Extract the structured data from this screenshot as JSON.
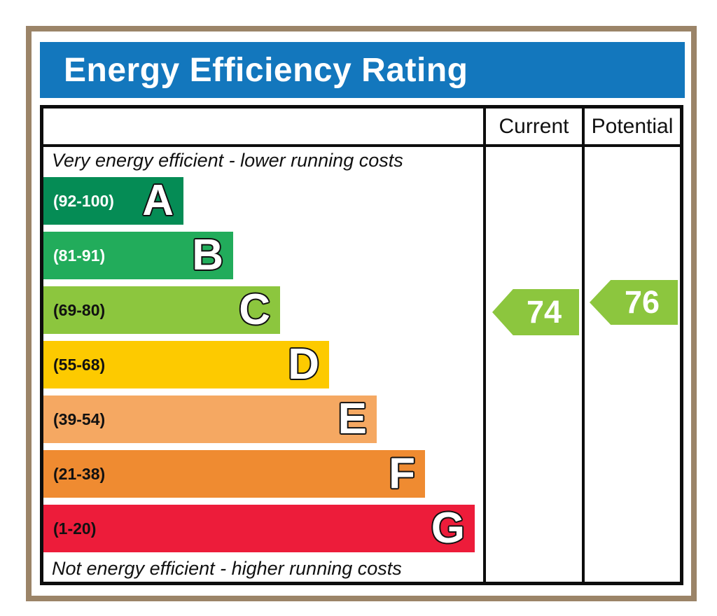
{
  "title": "Energy Efficiency Rating",
  "table": {
    "current_header": "Current",
    "potential_header": "Potential"
  },
  "captions": {
    "top": "Very energy efficient - lower running costs",
    "bottom": "Not energy efficient - higher running costs"
  },
  "bands": [
    {
      "letter": "A",
      "range": "(92-100)",
      "color": "#058c55",
      "text_color": "#ffffff"
    },
    {
      "letter": "B",
      "range": "(81-91)",
      "color": "#22ac5b",
      "text_color": "#ffffff"
    },
    {
      "letter": "C",
      "range": "(69-80)",
      "color": "#8cc63e",
      "text_color": "#111111"
    },
    {
      "letter": "D",
      "range": "(55-68)",
      "color": "#fdca00",
      "text_color": "#111111"
    },
    {
      "letter": "E",
      "range": "(39-54)",
      "color": "#f5a862",
      "text_color": "#111111"
    },
    {
      "letter": "F",
      "range": "(21-38)",
      "color": "#ef8b31",
      "text_color": "#111111"
    },
    {
      "letter": "G",
      "range": "(1-20)",
      "color": "#ed1c3a",
      "text_color": "#111111"
    }
  ],
  "ratings": {
    "current": {
      "value": "74",
      "color": "#8cc63e"
    },
    "potential": {
      "value": "76",
      "color": "#8cc63e"
    }
  },
  "colors": {
    "header_bg": "#1377bd",
    "frame": "#9b8468",
    "table_border": "#0d0d0d",
    "arrow_green": "#8cc63e"
  },
  "chart_data": {
    "type": "bar",
    "title": "Energy Efficiency Rating",
    "categories": [
      "A",
      "B",
      "C",
      "D",
      "E",
      "F",
      "G"
    ],
    "range_labels": [
      "(92-100)",
      "(81-91)",
      "(69-80)",
      "(55-68)",
      "(39-54)",
      "(21-38)",
      "(1-20)"
    ],
    "band_ranges": [
      [
        92,
        100
      ],
      [
        81,
        91
      ],
      [
        69,
        80
      ],
      [
        55,
        68
      ],
      [
        39,
        54
      ],
      [
        21,
        38
      ],
      [
        1,
        20
      ]
    ],
    "band_colors": [
      "#058c55",
      "#22ac5b",
      "#8cc63e",
      "#fdca00",
      "#f5a862",
      "#ef8b31",
      "#ed1c3a"
    ],
    "bar_relative_widths": [
      200,
      271,
      338,
      408,
      476,
      545,
      616
    ],
    "current": 74,
    "potential": 76,
    "current_band": "C",
    "potential_band": "C",
    "top_caption": "Very energy efficient - lower running costs",
    "bottom_caption": "Not energy efficient - higher running costs",
    "legend_position": "none",
    "grid": false
  }
}
